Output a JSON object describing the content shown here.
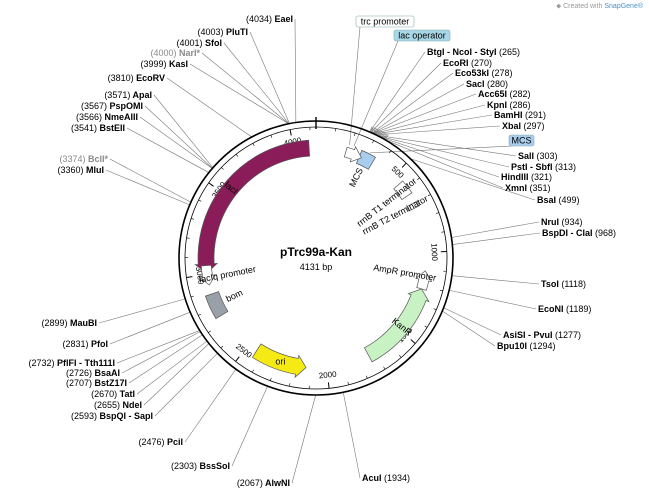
{
  "credit": {
    "prefix": "Created with",
    "brand": "SnapGene®",
    "logo_icon": "snapgene-logo-icon"
  },
  "plasmid": {
    "name": "pTrc99a-Kan",
    "size_label": "4131 bp",
    "length": 4131
  },
  "ticks": [
    {
      "label": "500",
      "bp": 500
    },
    {
      "label": "1000",
      "bp": 1000
    },
    {
      "label": "1500",
      "bp": 1500
    },
    {
      "label": "2000",
      "bp": 2000
    },
    {
      "label": "2500",
      "bp": 2500
    },
    {
      "label": "3000",
      "bp": 3000
    },
    {
      "label": "3500",
      "bp": 3500
    },
    {
      "label": "4000",
      "bp": 4000
    }
  ],
  "features": [
    {
      "id": "laci",
      "label": "lacI",
      "start": 3007,
      "end": 4090,
      "strand": -1,
      "color": "#8b1c5a",
      "kind": "cds"
    },
    {
      "id": "laciq-promoter",
      "label": "lacIq promoter",
      "start": 2935,
      "end": 3013,
      "strand": -1,
      "color": "#ffffff",
      "kind": "promoter"
    },
    {
      "id": "bom",
      "label": "bom",
      "start": 2740,
      "end": 2880,
      "strand": 0,
      "color": "#9aa0a8",
      "kind": "box"
    },
    {
      "id": "ori",
      "label": "ori",
      "start": 2125,
      "end": 2440,
      "strand": -1,
      "color": "#f5ea14",
      "kind": "cds"
    },
    {
      "id": "kanr",
      "label": "KanR",
      "start": 1220,
      "end": 1740,
      "strand": -1,
      "color": "#c8f2c4",
      "kind": "cds"
    },
    {
      "id": "ampr-promoter",
      "label": "AmpR promoter",
      "start": 1110,
      "end": 1180,
      "strand": -1,
      "color": "#ffffff",
      "kind": "promoter"
    },
    {
      "id": "rrnb-t2",
      "label": "rrnB T2 terminator",
      "start": 695,
      "end": 725,
      "strand": 1,
      "color": "#ffffff",
      "kind": "term"
    },
    {
      "id": "rrnb-t1",
      "label": "rrnB T1 terminator",
      "start": 555,
      "end": 640,
      "strand": 1,
      "color": "#ffffff",
      "kind": "term"
    },
    {
      "id": "mcs",
      "label": "MCS",
      "start": 265,
      "end": 351,
      "strand": 0,
      "color": "#a9cdef",
      "kind": "box"
    },
    {
      "id": "trc-lac",
      "label": "",
      "start": 180,
      "end": 240,
      "strand": 1,
      "color": "#ffffff",
      "kind": "arrow"
    }
  ],
  "feature_tags": [
    {
      "name": "trc-promoter-tag",
      "label": "trc promoter",
      "bg": "#ffffff"
    },
    {
      "name": "lac-operator-tag",
      "label": "lac operator",
      "bg": "#a8d8e8"
    },
    {
      "name": "mcs-tag",
      "label": "MCS",
      "bg": "#a9cdef"
    }
  ],
  "sites_left": [
    {
      "pos": "(4034)",
      "name": "EaeI",
      "dim": false
    },
    {
      "pos": "(4003)",
      "name": "PluTI",
      "dim": false
    },
    {
      "pos": "(4001)",
      "name": "SfoI",
      "dim": false
    },
    {
      "pos": "(4000)",
      "name": "NarI*",
      "dim": true
    },
    {
      "pos": "(3999)",
      "name": "KasI",
      "dim": false
    },
    {
      "pos": "(3810)",
      "name": "EcoRV",
      "dim": false
    },
    {
      "pos": "(3571)",
      "name": "ApaI",
      "dim": false
    },
    {
      "pos": "(3567)",
      "name": "PspOMI",
      "dim": false
    },
    {
      "pos": "(3566)",
      "name": "NmeAIII",
      "dim": false
    },
    {
      "pos": "(3541)",
      "name": "BstEII",
      "dim": false
    },
    {
      "pos": "(3374)",
      "name": "BclI*",
      "dim": true
    },
    {
      "pos": "(3360)",
      "name": "MluI",
      "dim": false
    },
    {
      "pos": "(2899)",
      "name": "MauBI",
      "dim": false
    },
    {
      "pos": "(2831)",
      "name": "PfoI",
      "dim": false
    },
    {
      "pos": "(2732)",
      "name": "PflFI - Tth111I",
      "dim": false
    },
    {
      "pos": "(2726)",
      "name": "BsaAI",
      "dim": false
    },
    {
      "pos": "(2707)",
      "name": "BstZ17I",
      "dim": false
    },
    {
      "pos": "(2670)",
      "name": "TatI",
      "dim": false
    },
    {
      "pos": "(2655)",
      "name": "NdeI",
      "dim": false
    },
    {
      "pos": "(2593)",
      "name": "BspQI - SapI",
      "dim": false
    },
    {
      "pos": "(2476)",
      "name": "PciI",
      "dim": false
    },
    {
      "pos": "(2303)",
      "name": "BssSoI",
      "dim": false
    },
    {
      "pos": "(2067)",
      "name": "AlwNI",
      "dim": false
    }
  ],
  "sites_right": [
    {
      "name": "BtgI - NcoI - StyI",
      "pos": "(265)"
    },
    {
      "name": "EcoRI",
      "pos": "(270)"
    },
    {
      "name": "Eco53kI",
      "pos": "(278)"
    },
    {
      "name": "SacI",
      "pos": "(280)"
    },
    {
      "name": "Acc65I",
      "pos": "(282)"
    },
    {
      "name": "KpnI",
      "pos": "(286)"
    },
    {
      "name": "BamHI",
      "pos": "(291)"
    },
    {
      "name": "XbaI",
      "pos": "(297)"
    },
    {
      "name": "SalI",
      "pos": "(303)"
    },
    {
      "name": "PstI - SbfI",
      "pos": "(313)"
    },
    {
      "name": "HindIII",
      "pos": "(321)"
    },
    {
      "name": "XmnI",
      "pos": "(351)"
    },
    {
      "name": "BsaI",
      "pos": "(499)"
    },
    {
      "name": "NruI",
      "pos": "(934)"
    },
    {
      "name": "BspDI - ClaI",
      "pos": "(968)"
    },
    {
      "name": "TsoI",
      "pos": "(1118)"
    },
    {
      "name": "EcoNI",
      "pos": "(1189)"
    },
    {
      "name": "AsiSI - PvuI",
      "pos": "(1277)"
    },
    {
      "name": "Bpu10I",
      "pos": "(1294)"
    },
    {
      "name": "AcuI",
      "pos": "(1934)"
    }
  ]
}
